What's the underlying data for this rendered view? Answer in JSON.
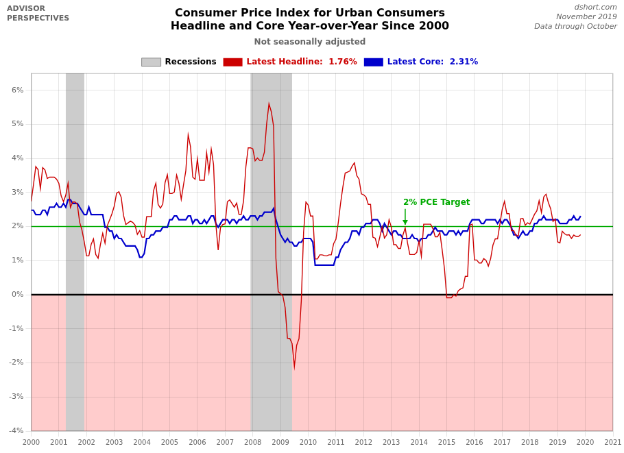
{
  "chart_data": {
    "type": "line",
    "title": [
      "Consumer Price Index for Urban Consumers",
      "Headline and Core Year-over-Year Since 2000"
    ],
    "subtitle": "Not seasonally adjusted",
    "source": [
      "dshort.com",
      "November 2019",
      "Data through October"
    ],
    "logo": [
      "ADVISOR",
      "PERSPECTIVES"
    ],
    "xlim": [
      2000.0,
      2021.0
    ],
    "ylim": [
      -4.0,
      6.5
    ],
    "xticks": [
      2000,
      2001,
      2002,
      2003,
      2004,
      2005,
      2006,
      2007,
      2008,
      2009,
      2010,
      2011,
      2012,
      2013,
      2014,
      2015,
      2016,
      2017,
      2018,
      2019,
      2020,
      2021
    ],
    "yticks": [
      {
        "value": -4,
        "label": "-4%"
      },
      {
        "value": -3,
        "label": "-3%"
      },
      {
        "value": -2,
        "label": "-2%"
      },
      {
        "value": -1,
        "label": "-1%"
      },
      {
        "value": 0,
        "label": "0%"
      },
      {
        "value": 1,
        "label": "1%"
      },
      {
        "value": 2,
        "label": "2%"
      },
      {
        "value": 3,
        "label": "3%"
      },
      {
        "value": 4,
        "label": "4%"
      },
      {
        "value": 5,
        "label": "5%"
      },
      {
        "value": 6,
        "label": "6%"
      }
    ],
    "grid": true,
    "legend": "top",
    "shaded_ranges": {
      "name": "Recessions",
      "color": "#cccccc",
      "ranges": [
        [
          2001.25,
          2001.917
        ],
        [
          2007.917,
          2009.417
        ]
      ]
    },
    "bands": [
      {
        "from": -4,
        "to": 0,
        "color": "#ffcccc"
      }
    ],
    "reference_lines": [
      {
        "y": 2.0,
        "color": "#00aa00"
      },
      {
        "y": 0.0,
        "color": "#000000"
      }
    ],
    "annotations": [
      {
        "text": "2% PCE Target",
        "x": 2013.5,
        "y": 2.52,
        "arrow_to_y": 2.05,
        "color": "#00aa00"
      }
    ],
    "x": [
      2000.0,
      2000.083,
      2000.167,
      2000.25,
      2000.333,
      2000.417,
      2000.5,
      2000.583,
      2000.667,
      2000.75,
      2000.833,
      2000.917,
      2001.0,
      2001.083,
      2001.167,
      2001.25,
      2001.333,
      2001.417,
      2001.5,
      2001.583,
      2001.667,
      2001.75,
      2001.833,
      2001.917,
      2002.0,
      2002.083,
      2002.167,
      2002.25,
      2002.333,
      2002.417,
      2002.5,
      2002.583,
      2002.667,
      2002.75,
      2002.833,
      2002.917,
      2003.0,
      2003.083,
      2003.167,
      2003.25,
      2003.333,
      2003.417,
      2003.5,
      2003.583,
      2003.667,
      2003.75,
      2003.833,
      2003.917,
      2004.0,
      2004.083,
      2004.167,
      2004.25,
      2004.333,
      2004.417,
      2004.5,
      2004.583,
      2004.667,
      2004.75,
      2004.833,
      2004.917,
      2005.0,
      2005.083,
      2005.167,
      2005.25,
      2005.333,
      2005.417,
      2005.5,
      2005.583,
      2005.667,
      2005.75,
      2005.833,
      2005.917,
      2006.0,
      2006.083,
      2006.167,
      2006.25,
      2006.333,
      2006.417,
      2006.5,
      2006.583,
      2006.667,
      2006.75,
      2006.833,
      2006.917,
      2007.0,
      2007.083,
      2007.167,
      2007.25,
      2007.333,
      2007.417,
      2007.5,
      2007.583,
      2007.667,
      2007.75,
      2007.833,
      2007.917,
      2008.0,
      2008.083,
      2008.167,
      2008.25,
      2008.333,
      2008.417,
      2008.5,
      2008.583,
      2008.667,
      2008.75,
      2008.833,
      2008.917,
      2009.0,
      2009.083,
      2009.167,
      2009.25,
      2009.333,
      2009.417,
      2009.5,
      2009.583,
      2009.667,
      2009.75,
      2009.833,
      2009.917,
      2010.0,
      2010.083,
      2010.167,
      2010.25,
      2010.333,
      2010.417,
      2010.5,
      2010.583,
      2010.667,
      2010.75,
      2010.833,
      2010.917,
      2011.0,
      2011.083,
      2011.167,
      2011.25,
      2011.333,
      2011.417,
      2011.5,
      2011.583,
      2011.667,
      2011.75,
      2011.833,
      2011.917,
      2012.0,
      2012.083,
      2012.167,
      2012.25,
      2012.333,
      2012.417,
      2012.5,
      2012.583,
      2012.667,
      2012.75,
      2012.833,
      2012.917,
      2013.0,
      2013.083,
      2013.167,
      2013.25,
      2013.333,
      2013.417,
      2013.5,
      2013.583,
      2013.667,
      2013.75,
      2013.833,
      2013.917,
      2014.0,
      2014.083,
      2014.167,
      2014.25,
      2014.333,
      2014.417,
      2014.5,
      2014.583,
      2014.667,
      2014.75,
      2014.833,
      2014.917,
      2015.0,
      2015.083,
      2015.167,
      2015.25,
      2015.333,
      2015.417,
      2015.5,
      2015.583,
      2015.667,
      2015.75,
      2015.833,
      2015.917,
      2016.0,
      2016.083,
      2016.167,
      2016.25,
      2016.333,
      2016.417,
      2016.5,
      2016.583,
      2016.667,
      2016.75,
      2016.833,
      2016.917,
      2017.0,
      2017.083,
      2017.167,
      2017.25,
      2017.333,
      2017.417,
      2017.5,
      2017.583,
      2017.667,
      2017.75,
      2017.833,
      2017.917,
      2018.0,
      2018.083,
      2018.167,
      2018.25,
      2018.333,
      2018.417,
      2018.5,
      2018.583,
      2018.667,
      2018.75,
      2018.833,
      2018.917,
      2019.0,
      2019.083,
      2019.167,
      2019.25,
      2019.333,
      2019.417,
      2019.5,
      2019.583,
      2019.667,
      2019.75,
      2019.833
    ],
    "series": [
      {
        "name": "Latest Headline:  1.76%",
        "color": "#cc0000",
        "values": [
          2.74,
          3.22,
          3.76,
          3.67,
          3.11,
          3.73,
          3.66,
          3.41,
          3.45,
          3.45,
          3.45,
          3.39,
          3.27,
          2.9,
          2.73,
          2.92,
          3.27,
          2.56,
          2.72,
          2.72,
          2.65,
          2.13,
          1.9,
          1.55,
          1.14,
          1.14,
          1.48,
          1.64,
          1.18,
          1.07,
          1.47,
          1.8,
          1.51,
          2.03,
          2.2,
          2.38,
          2.6,
          2.98,
          3.02,
          2.86,
          2.33,
          2.06,
          2.11,
          2.16,
          2.12,
          2.04,
          1.77,
          1.88,
          1.69,
          1.69,
          2.29,
          2.29,
          2.29,
          3.05,
          3.27,
          2.65,
          2.54,
          2.66,
          3.29,
          3.52,
          2.97,
          2.97,
          3.01,
          3.51,
          3.27,
          2.8,
          3.23,
          3.64,
          4.69,
          4.35,
          3.45,
          3.39,
          3.99,
          3.36,
          3.36,
          3.36,
          4.17,
          3.6,
          4.27,
          3.82,
          2.06,
          1.31,
          1.97,
          2.06,
          2.08,
          2.73,
          2.78,
          2.68,
          2.57,
          2.69,
          2.36,
          2.36,
          2.76,
          3.76,
          4.31,
          4.31,
          4.28,
          3.93,
          4.01,
          3.94,
          3.94,
          4.18,
          5.02,
          5.6,
          5.37,
          4.94,
          1.07,
          0.09,
          0.03,
          -0.03,
          -0.38,
          -1.28,
          -1.28,
          -1.43,
          -2.1,
          -1.48,
          -1.29,
          -0.18,
          1.84,
          2.72,
          2.63,
          2.31,
          2.31,
          1.05,
          1.05,
          1.17,
          1.17,
          1.15,
          1.14,
          1.17,
          1.17,
          1.5,
          1.63,
          2.11,
          2.68,
          3.16,
          3.57,
          3.6,
          3.63,
          3.77,
          3.87,
          3.5,
          3.39,
          2.96,
          2.93,
          2.87,
          2.65,
          2.65,
          1.69,
          1.66,
          1.41,
          1.69,
          2.0,
          1.66,
          1.76,
          2.2,
          1.98,
          1.47,
          1.47,
          1.36,
          1.36,
          1.75,
          1.96,
          1.52,
          1.18,
          1.18,
          1.18,
          1.24,
          1.58,
          1.13,
          2.07,
          2.07,
          2.07,
          2.07,
          1.94,
          1.7,
          1.7,
          1.83,
          1.32,
          0.76,
          -0.09,
          -0.09,
          -0.09,
          0.0,
          -0.04,
          0.12,
          0.17,
          0.2,
          0.54,
          0.54,
          2.04,
          2.07,
          1.02,
          1.02,
          0.93,
          0.93,
          1.06,
          1.01,
          0.84,
          1.06,
          1.46,
          1.64,
          1.64,
          2.07,
          2.5,
          2.74,
          2.38,
          2.38,
          1.88,
          1.88,
          1.73,
          1.73,
          2.23,
          2.24,
          2.04,
          2.11,
          2.07,
          2.21,
          2.36,
          2.46,
          2.76,
          2.41,
          2.87,
          2.95,
          2.7,
          2.52,
          2.15,
          2.22,
          1.55,
          1.52,
          1.86,
          1.79,
          1.75,
          1.76,
          1.65,
          1.75,
          1.71,
          1.71,
          1.76
        ]
      },
      {
        "name": "Latest Core:  2.31%",
        "color": "#0000cc",
        "values": [
          2.48,
          2.48,
          2.35,
          2.35,
          2.35,
          2.48,
          2.48,
          2.35,
          2.57,
          2.57,
          2.57,
          2.68,
          2.57,
          2.57,
          2.68,
          2.57,
          2.79,
          2.79,
          2.68,
          2.68,
          2.68,
          2.57,
          2.46,
          2.35,
          2.35,
          2.57,
          2.35,
          2.35,
          2.35,
          2.35,
          2.35,
          2.35,
          1.98,
          1.98,
          1.87,
          1.87,
          1.65,
          1.76,
          1.65,
          1.65,
          1.54,
          1.43,
          1.43,
          1.43,
          1.43,
          1.43,
          1.32,
          1.1,
          1.1,
          1.21,
          1.65,
          1.65,
          1.76,
          1.76,
          1.87,
          1.87,
          1.87,
          1.98,
          1.98,
          1.98,
          2.2,
          2.2,
          2.31,
          2.31,
          2.2,
          2.2,
          2.2,
          2.2,
          2.31,
          2.31,
          2.09,
          2.2,
          2.2,
          2.09,
          2.09,
          2.2,
          2.09,
          2.2,
          2.31,
          2.31,
          2.09,
          1.98,
          2.09,
          2.2,
          2.2,
          2.2,
          2.09,
          2.2,
          2.2,
          2.09,
          2.2,
          2.2,
          2.31,
          2.2,
          2.2,
          2.31,
          2.31,
          2.31,
          2.2,
          2.31,
          2.31,
          2.42,
          2.42,
          2.42,
          2.42,
          2.53,
          2.2,
          1.98,
          1.76,
          1.65,
          1.54,
          1.65,
          1.54,
          1.54,
          1.43,
          1.43,
          1.54,
          1.54,
          1.65,
          1.65,
          1.65,
          1.65,
          1.54,
          0.87,
          0.87,
          0.87,
          0.87,
          0.87,
          0.87,
          0.87,
          0.87,
          0.87,
          1.1,
          1.1,
          1.32,
          1.43,
          1.54,
          1.54,
          1.65,
          1.87,
          1.87,
          1.87,
          1.76,
          1.98,
          1.98,
          2.09,
          2.09,
          2.09,
          2.2,
          2.2,
          2.2,
          2.09,
          1.87,
          2.09,
          1.98,
          1.87,
          1.76,
          1.87,
          1.87,
          1.76,
          1.76,
          1.65,
          1.65,
          1.65,
          1.65,
          1.76,
          1.65,
          1.65,
          1.54,
          1.65,
          1.65,
          1.65,
          1.76,
          1.76,
          1.87,
          1.98,
          1.87,
          1.87,
          1.87,
          1.76,
          1.76,
          1.87,
          1.87,
          1.87,
          1.76,
          1.87,
          1.76,
          1.87,
          1.87,
          1.87,
          2.09,
          2.2,
          2.2,
          2.2,
          2.2,
          2.09,
          2.09,
          2.2,
          2.2,
          2.2,
          2.2,
          2.2,
          2.09,
          2.2,
          2.09,
          2.2,
          2.2,
          2.09,
          1.98,
          1.76,
          1.76,
          1.65,
          1.76,
          1.87,
          1.76,
          1.76,
          1.87,
          1.87,
          2.09,
          2.09,
          2.2,
          2.2,
          2.31,
          2.2,
          2.2,
          2.2,
          2.2,
          2.2,
          2.2,
          2.09,
          2.09,
          2.09,
          2.09,
          2.2,
          2.2,
          2.31,
          2.2,
          2.2,
          2.31
        ]
      }
    ]
  }
}
